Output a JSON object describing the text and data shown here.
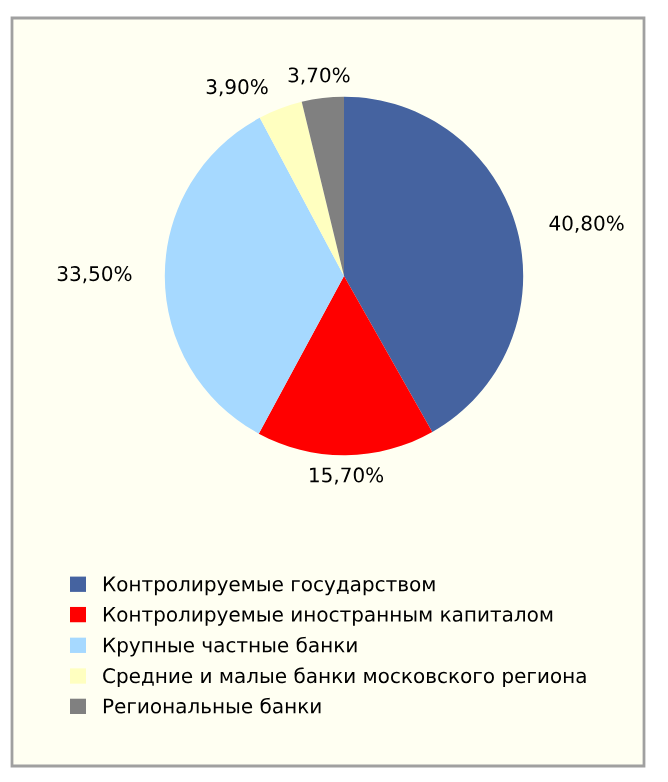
{
  "chart_data": {
    "type": "pie",
    "categories": [
      "Контролируемые государством",
      "Контролируемые иностранным капиталом",
      "Крупные частные банки",
      "Средние и малые банки московского региона",
      "Региональные банки"
    ],
    "values": [
      40.8,
      15.7,
      33.5,
      3.9,
      3.7
    ],
    "value_labels": [
      "40,80%",
      "15,70%",
      "33,50%",
      "3,90%",
      "3,70%"
    ],
    "colors": [
      "#4563a0",
      "#ff0000",
      "#a6d9ff",
      "#ffffc0",
      "#808080"
    ],
    "legend": "bottom"
  }
}
